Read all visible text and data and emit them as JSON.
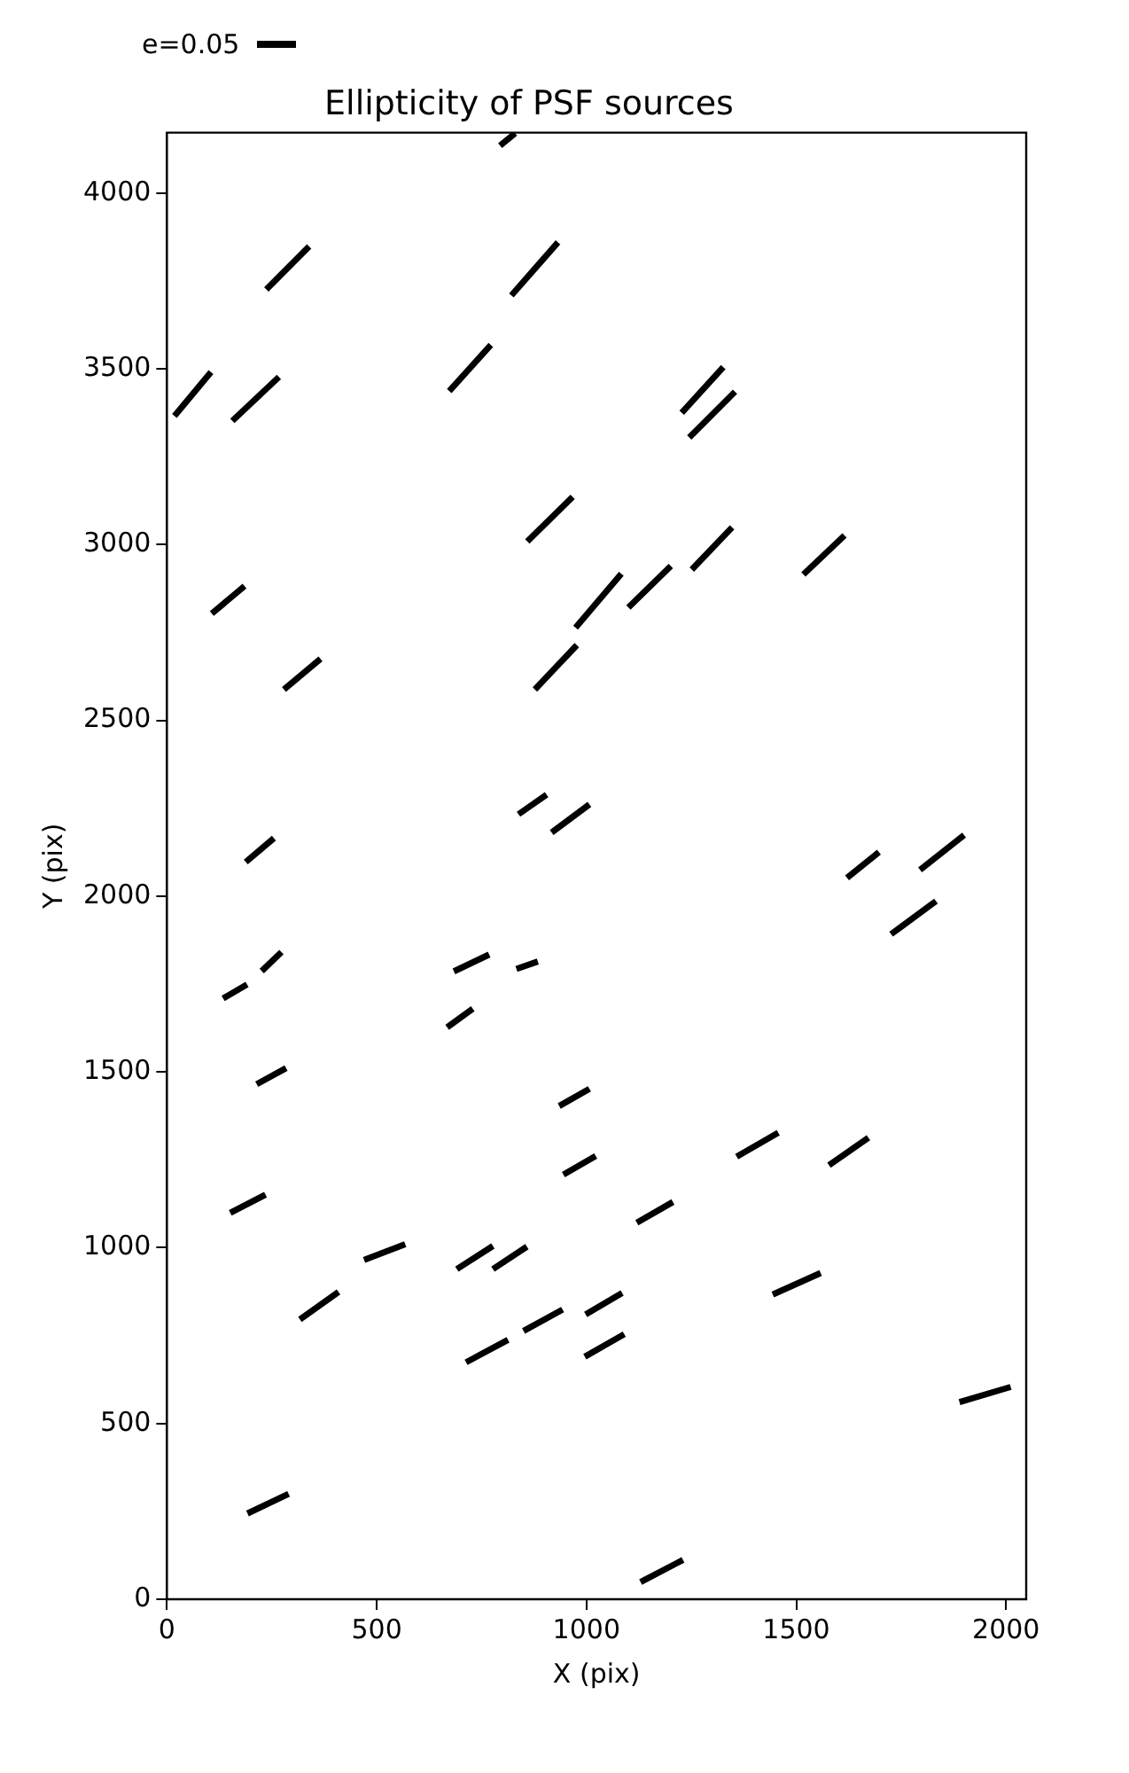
{
  "chart_data": {
    "type": "line",
    "title": "Ellipticity of PSF sources",
    "xlabel": "X (pix)",
    "ylabel": "Y (pix)",
    "xlim": [
      0,
      2048
    ],
    "ylim": [
      0,
      4172
    ],
    "xticks": [
      0,
      500,
      1000,
      1500,
      2000
    ],
    "yticks": [
      0,
      500,
      1000,
      1500,
      2000,
      2500,
      3000,
      3500,
      4000
    ],
    "grid": false,
    "marker": "none",
    "line_style": "solid",
    "annotations": [
      "e=0.05"
    ],
    "series": [
      {
        "color": "#000000",
        "x": [
          794,
          830
        ],
        "values": [
          4135,
          4170
        ]
      },
      {
        "color": "#000000",
        "x": [
          237,
          339
        ],
        "values": [
          3726,
          3848
        ]
      },
      {
        "color": "#000000",
        "x": [
          821,
          932
        ],
        "values": [
          3709,
          3860
        ]
      },
      {
        "color": "#000000",
        "x": [
          18,
          105
        ],
        "values": [
          3366,
          3491
        ]
      },
      {
        "color": "#000000",
        "x": [
          156,
          267
        ],
        "values": [
          3352,
          3477
        ]
      },
      {
        "color": "#000000",
        "x": [
          673,
          772
        ],
        "values": [
          3437,
          3568
        ]
      },
      {
        "color": "#000000",
        "x": [
          1227,
          1326
        ],
        "values": [
          3375,
          3505
        ]
      },
      {
        "color": "#000000",
        "x": [
          1245,
          1354
        ],
        "values": [
          3305,
          3435
        ]
      },
      {
        "color": "#000000",
        "x": [
          859,
          967
        ],
        "values": [
          3009,
          3136
        ]
      },
      {
        "color": "#000000",
        "x": [
          1251,
          1347
        ],
        "values": [
          2929,
          3049
        ]
      },
      {
        "color": "#000000",
        "x": [
          1517,
          1615
        ],
        "values": [
          2915,
          3026
        ]
      },
      {
        "color": "#000000",
        "x": [
          107,
          185
        ],
        "values": [
          2804,
          2882
        ]
      },
      {
        "color": "#000000",
        "x": [
          974,
          1083
        ],
        "values": [
          2764,
          2917
        ]
      },
      {
        "color": "#000000",
        "x": [
          1100,
          1201
        ],
        "values": [
          2821,
          2939
        ]
      },
      {
        "color": "#000000",
        "x": [
          279,
          366
        ],
        "values": [
          2588,
          2675
        ]
      },
      {
        "color": "#000000",
        "x": [
          877,
          977
        ],
        "values": [
          2588,
          2714
        ]
      },
      {
        "color": "#000000",
        "x": [
          838,
          905
        ],
        "values": [
          2233,
          2289
        ]
      },
      {
        "color": "#000000",
        "x": [
          917,
          1007
        ],
        "values": [
          2181,
          2261
        ]
      },
      {
        "color": "#000000",
        "x": [
          188,
          255
        ],
        "values": [
          2097,
          2165
        ]
      },
      {
        "color": "#000000",
        "x": [
          1621,
          1697
        ],
        "values": [
          2052,
          2125
        ]
      },
      {
        "color": "#000000",
        "x": [
          1795,
          1900
        ],
        "values": [
          2075,
          2174
        ]
      },
      {
        "color": "#000000",
        "x": [
          1726,
          1833
        ],
        "values": [
          1892,
          1986
        ]
      },
      {
        "color": "#000000",
        "x": [
          134,
          191
        ],
        "values": [
          1709,
          1749
        ]
      },
      {
        "color": "#000000",
        "x": [
          226,
          273
        ],
        "values": [
          1787,
          1841
        ]
      },
      {
        "color": "#000000",
        "x": [
          684,
          768
        ],
        "values": [
          1786,
          1834
        ]
      },
      {
        "color": "#000000",
        "x": [
          833,
          884
        ],
        "values": [
          1793,
          1814
        ]
      },
      {
        "color": "#000000",
        "x": [
          668,
          729
        ],
        "values": [
          1627,
          1680
        ]
      },
      {
        "color": "#000000",
        "x": [
          214,
          284
        ],
        "values": [
          1465,
          1511
        ]
      },
      {
        "color": "#000000",
        "x": [
          935,
          1007
        ],
        "values": [
          1403,
          1452
        ]
      },
      {
        "color": "#000000",
        "x": [
          945,
          1022
        ],
        "values": [
          1208,
          1261
        ]
      },
      {
        "color": "#000000",
        "x": [
          1358,
          1457
        ],
        "values": [
          1259,
          1327
        ]
      },
      {
        "color": "#000000",
        "x": [
          1578,
          1672
        ],
        "values": [
          1235,
          1313
        ]
      },
      {
        "color": "#000000",
        "x": [
          151,
          235
        ],
        "values": [
          1099,
          1151
        ]
      },
      {
        "color": "#000000",
        "x": [
          1120,
          1206
        ],
        "values": [
          1071,
          1130
        ]
      },
      {
        "color": "#000000",
        "x": [
          470,
          568
        ],
        "values": [
          965,
          1010
        ]
      },
      {
        "color": "#000000",
        "x": [
          691,
          777
        ],
        "values": [
          939,
          1005
        ]
      },
      {
        "color": "#000000",
        "x": [
          777,
          858
        ],
        "values": [
          939,
          1003
        ]
      },
      {
        "color": "#000000",
        "x": [
          317,
          409
        ],
        "values": [
          796,
          874
        ]
      },
      {
        "color": "#000000",
        "x": [
          1444,
          1558
        ],
        "values": [
          867,
          928
        ]
      },
      {
        "color": "#000000",
        "x": [
          850,
          943
        ],
        "values": [
          763,
          824
        ]
      },
      {
        "color": "#000000",
        "x": [
          998,
          1085
        ],
        "values": [
          810,
          871
        ]
      },
      {
        "color": "#000000",
        "x": [
          713,
          813
        ],
        "values": [
          674,
          738
        ]
      },
      {
        "color": "#000000",
        "x": [
          996,
          1090
        ],
        "values": [
          690,
          754
        ]
      },
      {
        "color": "#000000",
        "x": [
          1889,
          2011
        ],
        "values": [
          561,
          604
        ]
      },
      {
        "color": "#000000",
        "x": [
          192,
          290
        ],
        "values": [
          244,
          300
        ]
      },
      {
        "color": "#000000",
        "x": [
          1129,
          1230
        ],
        "values": [
          49,
          112
        ]
      }
    ]
  }
}
